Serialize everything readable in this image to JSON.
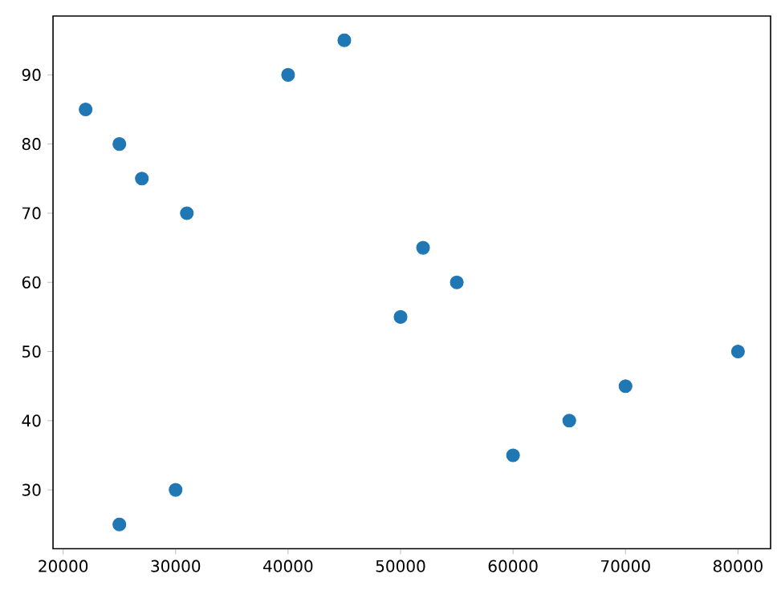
{
  "chart_data": {
    "type": "scatter",
    "color": "#1f77b4",
    "marker": "circle",
    "x": [
      22000,
      25000,
      27000,
      31000,
      40000,
      45000,
      52000,
      55000,
      50000,
      80000,
      70000,
      65000,
      60000,
      30000,
      25000
    ],
    "values": [
      85,
      80,
      75,
      70,
      90,
      95,
      65,
      60,
      55,
      50,
      45,
      40,
      35,
      30,
      25
    ],
    "xlim": [
      19100,
      82900
    ],
    "ylim": [
      21.5,
      98.5
    ],
    "xticks": [
      20000,
      30000,
      40000,
      50000,
      60000,
      70000,
      80000
    ],
    "yticks": [
      30,
      40,
      50,
      60,
      70,
      80,
      90
    ]
  }
}
